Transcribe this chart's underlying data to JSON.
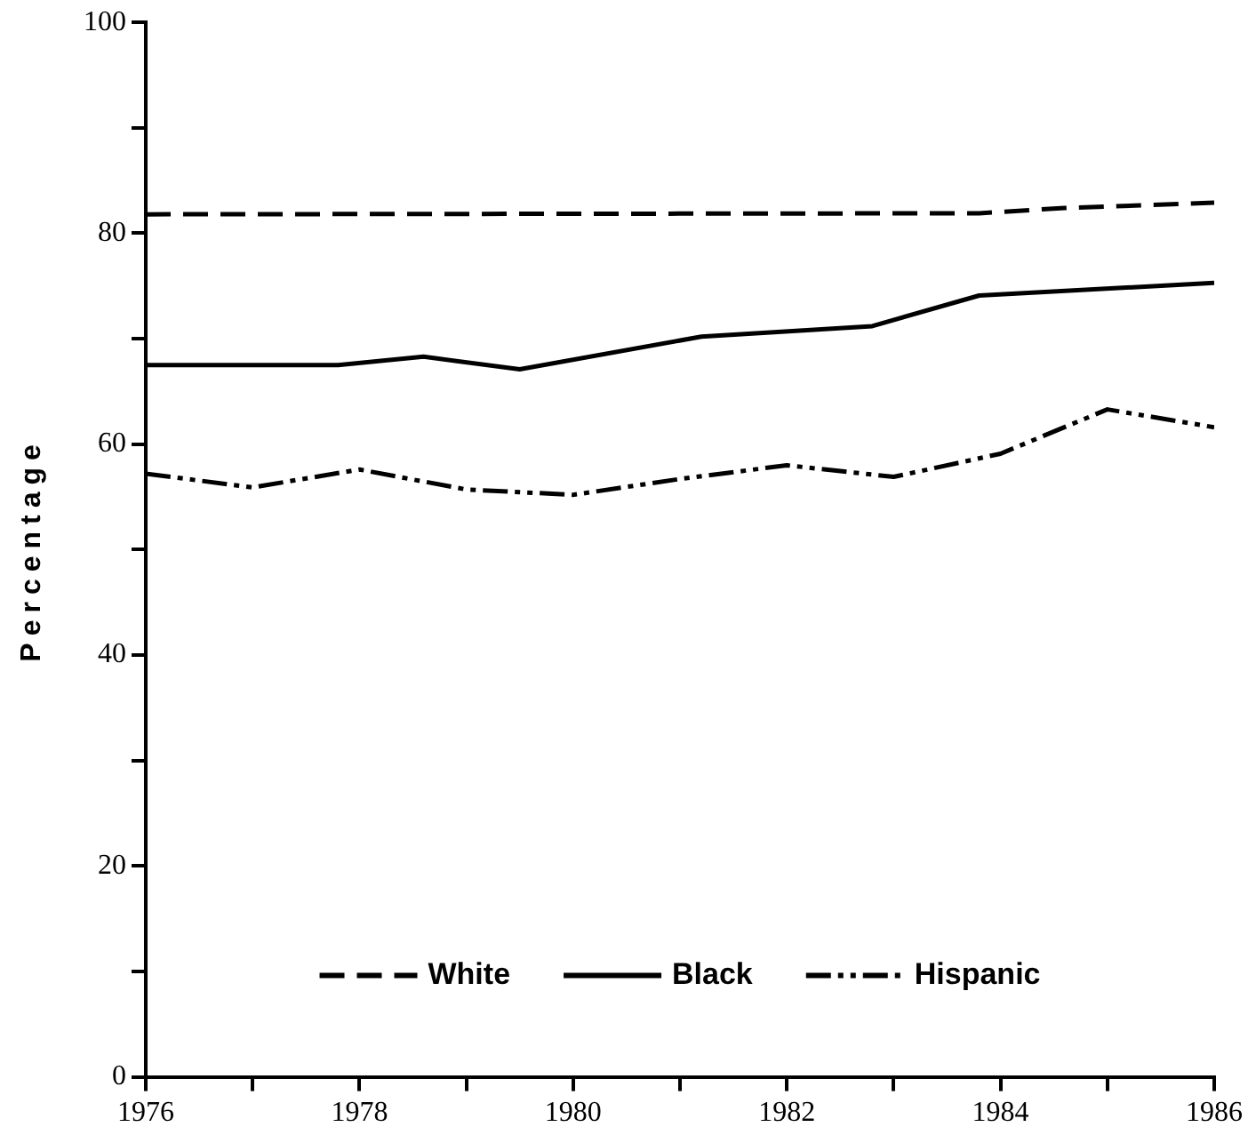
{
  "chart_data": {
    "type": "line",
    "ylabel": "Percentage",
    "xlim": [
      1976,
      1986
    ],
    "ylim": [
      0,
      100
    ],
    "xticks": [
      1976,
      {
        "value": 1977,
        "label": null
      },
      1978,
      {
        "value": 1979,
        "label": null
      },
      1980,
      {
        "value": 1981,
        "label": null
      },
      1982,
      {
        "value": 1983,
        "label": null
      },
      1984,
      {
        "value": 1985,
        "label": null
      },
      1986
    ],
    "yticks": [
      0,
      {
        "value": 10,
        "label": null
      },
      20,
      {
        "value": 30,
        "label": null
      },
      40,
      {
        "value": 50,
        "label": null
      },
      60,
      {
        "value": 70,
        "label": null
      },
      80,
      {
        "value": 90,
        "label": null
      },
      100
    ],
    "grid": false,
    "legend": "bottom",
    "marker": "none",
    "series": [
      {
        "name": "White",
        "color": "#000000",
        "line_style": "dashed",
        "x": [
          1976,
          1983.8,
          1984.6,
          1986
        ],
        "values": [
          81.8,
          81.9,
          82.4,
          82.9
        ]
      },
      {
        "name": "Black",
        "color": "#000000",
        "line_style": "solid",
        "x": [
          1976,
          1977.8,
          1978.6,
          1979.5,
          1981.2,
          1982.8,
          1983.8,
          1986
        ],
        "values": [
          67.5,
          67.5,
          68.3,
          67.1,
          70.2,
          71.2,
          74.1,
          75.3
        ]
      },
      {
        "name": "Hispanic",
        "color": "#000000",
        "line_style": "dashdot",
        "x": [
          1976,
          1977,
          1978,
          1979,
          1980,
          1981,
          1982,
          1983,
          1984,
          1985,
          1986
        ],
        "values": [
          57.2,
          55.9,
          57.6,
          55.7,
          55.2,
          56.7,
          58.0,
          56.9,
          59.1,
          63.3,
          61.6
        ]
      }
    ]
  }
}
